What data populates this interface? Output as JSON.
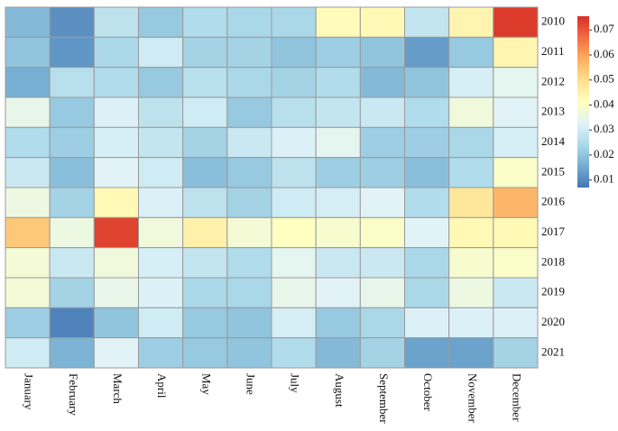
{
  "chart_data": {
    "type": "heatmap",
    "x": [
      "January",
      "February",
      "March",
      "April",
      "May",
      "June",
      "July",
      "August",
      "September",
      "October",
      "November",
      "December"
    ],
    "y": [
      "2010",
      "2011",
      "2012",
      "2013",
      "2014",
      "2015",
      "2016",
      "2017",
      "2018",
      "2019",
      "2020",
      "2021"
    ],
    "values": [
      [
        0.018,
        0.011,
        0.027,
        0.021,
        0.025,
        0.024,
        0.024,
        0.042,
        0.043,
        0.028,
        0.044,
        0.074
      ],
      [
        0.02,
        0.012,
        0.024,
        0.03,
        0.023,
        0.023,
        0.02,
        0.022,
        0.02,
        0.013,
        0.021,
        0.044
      ],
      [
        0.016,
        0.026,
        0.025,
        0.021,
        0.026,
        0.024,
        0.023,
        0.025,
        0.018,
        0.02,
        0.031,
        0.034
      ],
      [
        0.035,
        0.021,
        0.032,
        0.027,
        0.03,
        0.021,
        0.026,
        0.028,
        0.029,
        0.025,
        0.037,
        0.033
      ],
      [
        0.025,
        0.022,
        0.031,
        0.028,
        0.023,
        0.029,
        0.032,
        0.034,
        0.022,
        0.022,
        0.024,
        0.031
      ],
      [
        0.029,
        0.019,
        0.033,
        0.03,
        0.019,
        0.021,
        0.027,
        0.022,
        0.022,
        0.019,
        0.025,
        0.04
      ],
      [
        0.036,
        0.023,
        0.043,
        0.032,
        0.027,
        0.023,
        0.03,
        0.031,
        0.033,
        0.025,
        0.048,
        0.057
      ],
      [
        0.054,
        0.036,
        0.073,
        0.037,
        0.045,
        0.038,
        0.041,
        0.039,
        0.04,
        0.033,
        0.043,
        0.043
      ],
      [
        0.038,
        0.029,
        0.037,
        0.031,
        0.028,
        0.025,
        0.034,
        0.029,
        0.029,
        0.024,
        0.039,
        0.04
      ],
      [
        0.038,
        0.023,
        0.035,
        0.032,
        0.024,
        0.024,
        0.035,
        0.033,
        0.035,
        0.024,
        0.036,
        0.029
      ],
      [
        0.022,
        0.009,
        0.02,
        0.03,
        0.021,
        0.02,
        0.031,
        0.021,
        0.024,
        0.032,
        0.032,
        0.032
      ],
      [
        0.03,
        0.017,
        0.033,
        0.022,
        0.021,
        0.02,
        0.025,
        0.018,
        0.023,
        0.014,
        0.014,
        0.023
      ]
    ],
    "clim": [
      0.007,
      0.0755
    ],
    "cticks": [
      0.01,
      0.02,
      0.03,
      0.04,
      0.05,
      0.06,
      0.07
    ],
    "colorscale": [
      "#4575b4",
      "#74add1",
      "#abd9e9",
      "#e0f3f8",
      "#ffffbf",
      "#fee090",
      "#fdae61",
      "#f46d43",
      "#d73027"
    ]
  }
}
